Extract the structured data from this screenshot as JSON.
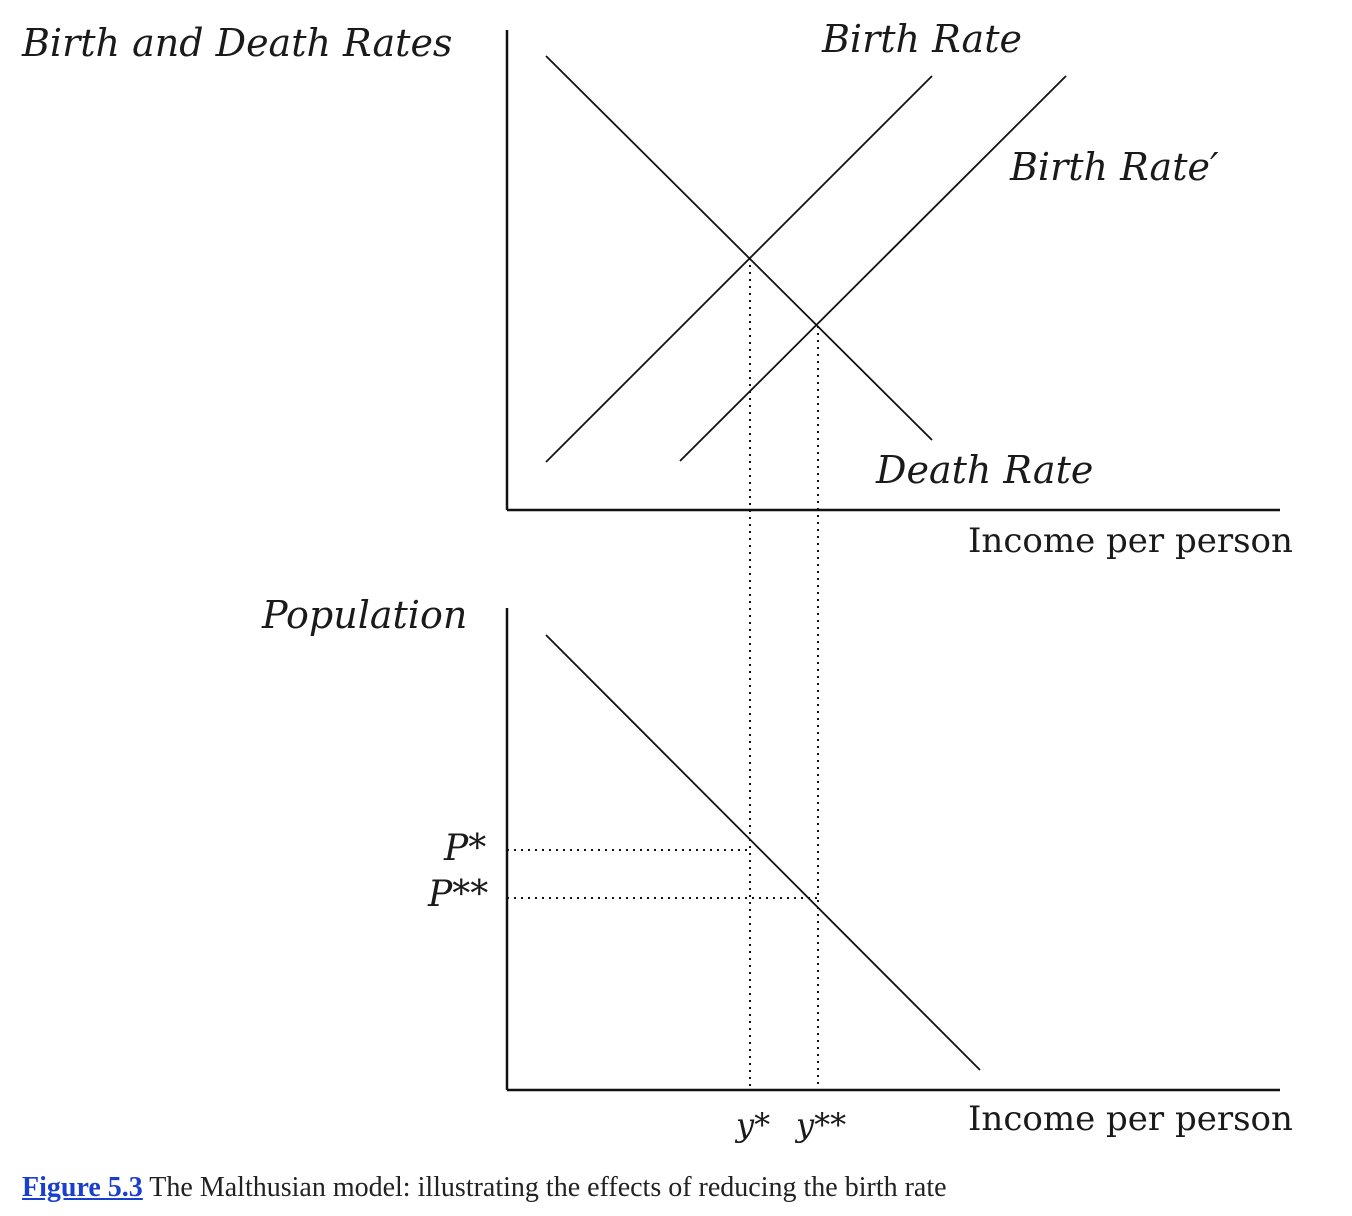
{
  "top_panel": {
    "y_axis_label": "Birth and Death Rates",
    "x_axis_label": "Income per person",
    "curves": {
      "birth_rate": "Birth Rate",
      "birth_rate_prime": "Birth Rate′",
      "death_rate": "Death Rate"
    }
  },
  "bottom_panel": {
    "y_axis_label": "Population",
    "x_axis_label": "Income per person",
    "p_star": "P*",
    "p_double_star": "P**",
    "y_star": "y*",
    "y_double_star": "y**"
  },
  "caption": {
    "link_text": "Figure 5.3",
    "text": " The Malthusian model: illustrating the effects of reducing the birth rate"
  },
  "colors": {
    "line": "#111111",
    "link": "#1a3fd0",
    "caption_text": "#222222"
  }
}
